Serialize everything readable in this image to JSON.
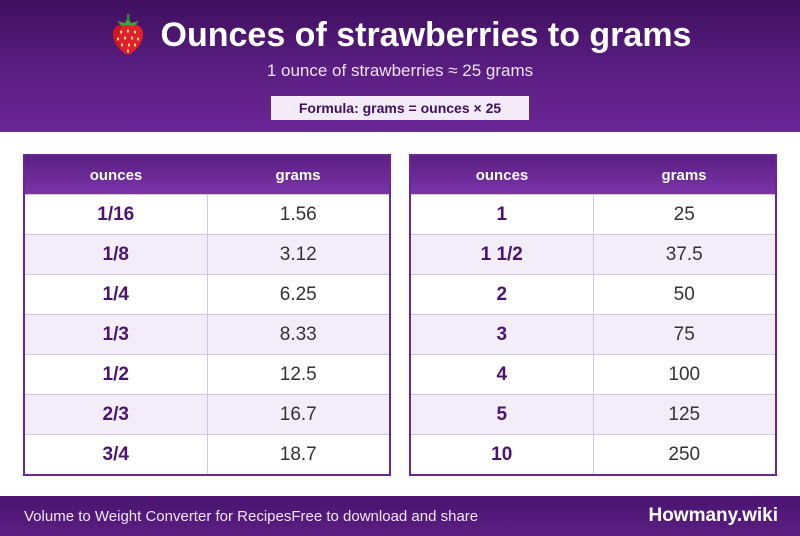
{
  "header": {
    "icon": "strawberry-icon",
    "title": "Ounces of strawberries to grams",
    "subtitle": "1 ounce of strawberries ≈ 25 grams",
    "formula": "Formula: grams = ounces × 25"
  },
  "tables": {
    "col_ounces": "ounces",
    "col_grams": "grams",
    "left_rows": [
      {
        "ounces": "1/16",
        "grams": "1.56"
      },
      {
        "ounces": "1/8",
        "grams": "3.12"
      },
      {
        "ounces": "1/4",
        "grams": "6.25"
      },
      {
        "ounces": "1/3",
        "grams": "8.33"
      },
      {
        "ounces": "1/2",
        "grams": "12.5"
      },
      {
        "ounces": "2/3",
        "grams": "16.7"
      },
      {
        "ounces": "3/4",
        "grams": "18.7"
      }
    ],
    "right_rows": [
      {
        "ounces": "1",
        "grams": "25"
      },
      {
        "ounces": "1 1/2",
        "grams": "37.5"
      },
      {
        "ounces": "2",
        "grams": "50"
      },
      {
        "ounces": "3",
        "grams": "75"
      },
      {
        "ounces": "4",
        "grams": "100"
      },
      {
        "ounces": "5",
        "grams": "125"
      },
      {
        "ounces": "10",
        "grams": "250"
      }
    ]
  },
  "footer": {
    "left_text": "Volume to Weight Converter for RecipesFree to download and share",
    "brand": "Howmany.wiki"
  },
  "colors": {
    "primary": "#5b1f82",
    "dark": "#3f0f60",
    "row_alt": "#f3edf9"
  }
}
